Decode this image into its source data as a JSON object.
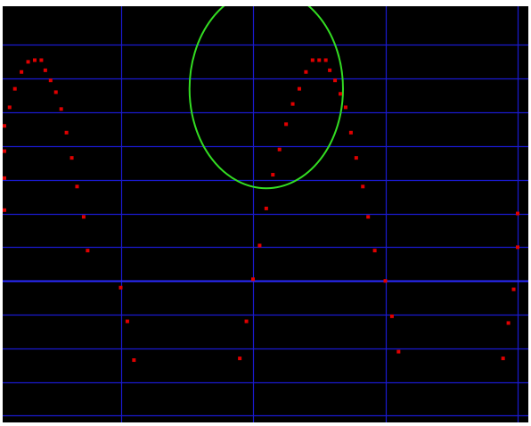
{
  "colors": {
    "background": "#000000",
    "frame": "#ffffff",
    "grid": "#1a1ad0",
    "axis": "#2a2aff",
    "points": "#e00000",
    "ellipse": "#33dd22"
  },
  "chart_data": {
    "type": "scatter",
    "title": "",
    "xlabel": "",
    "ylabel": "",
    "xlim": [
      -2,
      2
    ],
    "ylim": [
      -1.24,
      1.23
    ],
    "grid": true,
    "x_gridlines": [
      -1,
      0,
      1,
      2
    ],
    "y_gridlines": [
      1.0,
      0.8,
      0.6,
      0.4,
      0.2,
      0.0,
      -0.2,
      -0.4,
      -0.6,
      -0.8,
      -1.0,
      -1.2
    ],
    "axis_line_y": -0.4,
    "series": [
      {
        "marker": "dot",
        "color": "#e00000",
        "points": [
          [
            -2.0,
            0.02
          ],
          [
            -1.96,
            0.21
          ],
          [
            -1.92,
            0.37
          ],
          [
            -1.88,
            0.52
          ],
          [
            -1.84,
            0.63
          ],
          [
            -1.8,
            0.74
          ],
          [
            -1.75,
            0.84
          ],
          [
            -1.7,
            0.9
          ],
          [
            -1.65,
            0.91
          ],
          [
            -1.6,
            0.91
          ],
          [
            -1.57,
            0.85
          ],
          [
            -1.53,
            0.79
          ],
          [
            -1.49,
            0.72
          ],
          [
            -1.45,
            0.62
          ],
          [
            -1.41,
            0.48
          ],
          [
            -1.37,
            0.33
          ],
          [
            -1.33,
            0.16
          ],
          [
            -1.28,
            -0.02
          ],
          [
            -1.25,
            -0.22
          ],
          [
            -1.0,
            -0.44
          ],
          [
            -0.95,
            -0.64
          ],
          [
            -0.9,
            -0.87
          ],
          [
            -0.1,
            -0.86
          ],
          [
            -0.05,
            -0.64
          ],
          [
            0.0,
            -0.39
          ],
          [
            0.05,
            -0.19
          ],
          [
            0.1,
            0.03
          ],
          [
            0.15,
            0.23
          ],
          [
            0.2,
            0.38
          ],
          [
            0.25,
            0.53
          ],
          [
            0.3,
            0.65
          ],
          [
            0.35,
            0.74
          ],
          [
            0.4,
            0.84
          ],
          [
            0.45,
            0.91
          ],
          [
            0.5,
            0.91
          ],
          [
            0.55,
            0.91
          ],
          [
            0.58,
            0.85
          ],
          [
            0.62,
            0.79
          ],
          [
            0.66,
            0.71
          ],
          [
            0.7,
            0.63
          ],
          [
            0.74,
            0.48
          ],
          [
            0.78,
            0.33
          ],
          [
            0.83,
            0.16
          ],
          [
            0.87,
            -0.02
          ],
          [
            0.92,
            -0.22
          ],
          [
            1.0,
            -0.4
          ],
          [
            1.05,
            -0.61
          ],
          [
            1.1,
            -0.82
          ],
          [
            1.89,
            -0.86
          ],
          [
            1.93,
            -0.65
          ],
          [
            1.97,
            -0.45
          ],
          [
            2.0,
            -0.2
          ],
          [
            2.0,
            0.0
          ]
        ]
      }
    ],
    "shapes": [
      {
        "type": "ellipse",
        "cx": 0.1,
        "cy": 0.74,
        "rx": 0.58,
        "ry": 0.59,
        "color": "#33dd22"
      }
    ]
  }
}
